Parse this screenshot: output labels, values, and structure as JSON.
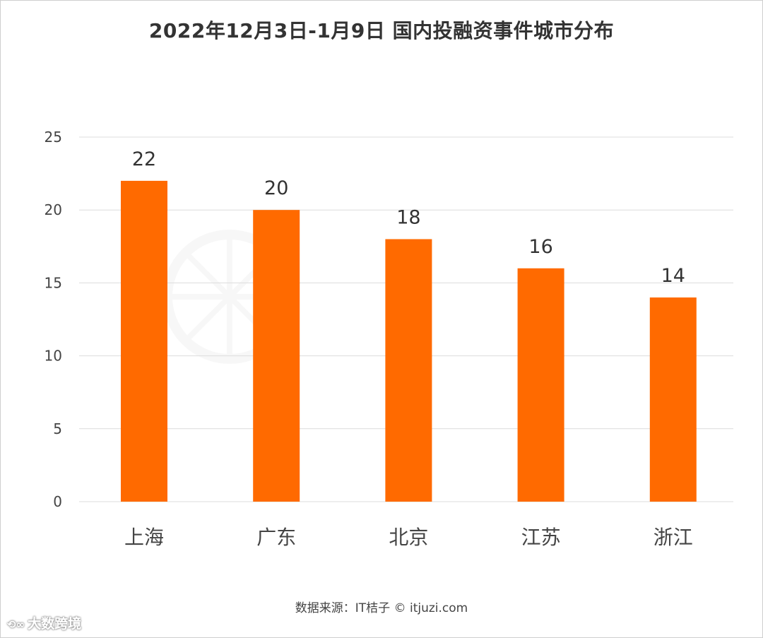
{
  "title": "2022年12月3日-1月9日 国内投融资事件城市分布",
  "source_text": "数据来源：IT桔子 © itjuzi.com",
  "footer_brand": "大数跨境",
  "colors": {
    "bar": "#ff6a00",
    "grid": "#dcdcdc",
    "axis_text": "#444444",
    "label_text": "#333333"
  },
  "chart_data": {
    "type": "bar",
    "title": "2022年12月3日-1月9日 国内投融资事件城市分布",
    "categories": [
      "上海",
      "广东",
      "北京",
      "江苏",
      "浙江"
    ],
    "values": [
      22,
      20,
      18,
      16,
      14
    ],
    "yticks": [
      0,
      5,
      10,
      15,
      20,
      25
    ],
    "ylim": [
      0,
      25
    ],
    "xlabel": "",
    "ylabel": "",
    "grid": true,
    "data_labels": true,
    "legend": "none"
  }
}
